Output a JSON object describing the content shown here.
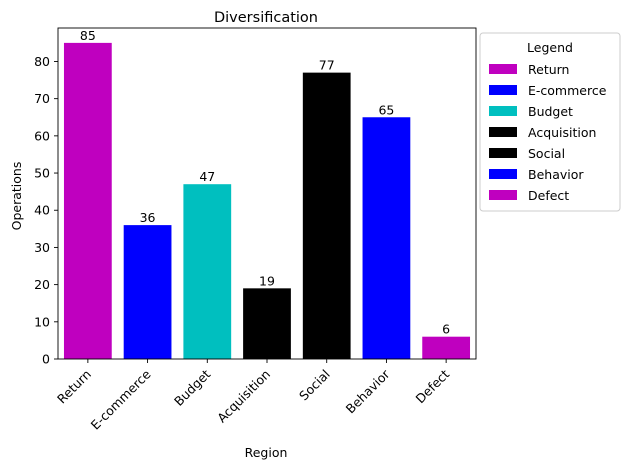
{
  "chart_data": {
    "type": "bar",
    "title": "Diversification",
    "xlabel": "Region",
    "ylabel": "Operations",
    "categories": [
      "Return",
      "E-commerce",
      "Budget",
      "Acquisition",
      "Social",
      "Behavior",
      "Defect"
    ],
    "values": [
      85,
      36,
      47,
      19,
      77,
      65,
      6
    ],
    "colors": [
      "#bf00bf",
      "#0000ff",
      "#00bfbf",
      "#000000",
      "#000000",
      "#0000ff",
      "#bf00bf"
    ],
    "ylim": [
      0,
      89
    ],
    "yticks": [
      0,
      10,
      20,
      30,
      40,
      50,
      60,
      70,
      80
    ],
    "grid": false,
    "data_labels": true,
    "legend": {
      "title": "Legend",
      "placement": "outside-right",
      "entries": [
        "Return",
        "E-commerce",
        "Budget",
        "Acquisition",
        "Social",
        "Behavior",
        "Defect"
      ]
    }
  }
}
